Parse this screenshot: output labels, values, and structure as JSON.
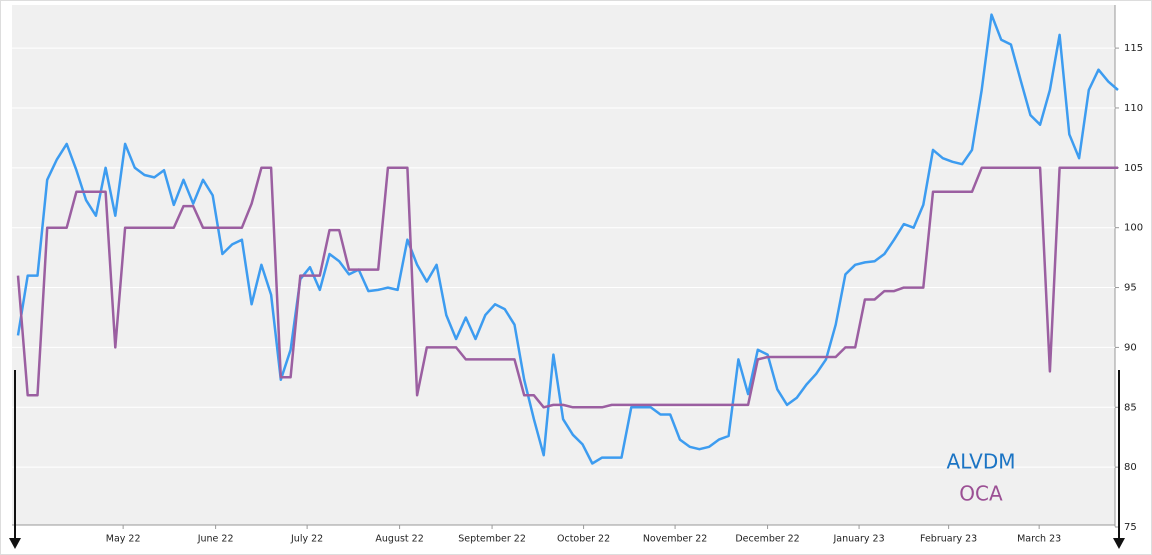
{
  "chart_data": {
    "type": "line",
    "ylim": [
      75,
      118.6
    ],
    "yticks": [
      75,
      80,
      85,
      90,
      95,
      100,
      105,
      110,
      115
    ],
    "xlim": [
      0,
      113
    ],
    "xticks": [
      {
        "value": 10.8,
        "label": "May 22"
      },
      {
        "value": 20.3,
        "label": "June 22"
      },
      {
        "value": 29.7,
        "label": "July 22"
      },
      {
        "value": 39.2,
        "label": "August 22"
      },
      {
        "value": 48.7,
        "label": "September 22"
      },
      {
        "value": 58.1,
        "label": "October 22"
      },
      {
        "value": 67.5,
        "label": "November 22"
      },
      {
        "value": 77,
        "label": "December 22"
      },
      {
        "value": 86.4,
        "label": "January 23"
      },
      {
        "value": 95.6,
        "label": "February 23"
      },
      {
        "value": 104.9,
        "label": "March 23"
      }
    ],
    "grid": true,
    "legend": "lower right",
    "series": [
      {
        "name": "ALVDM",
        "color": "#3d9cf0",
        "label_color": "#1b74c4",
        "values": [
          91,
          96,
          96,
          104,
          105.7,
          107,
          104.8,
          102.3,
          101,
          105,
          101,
          107,
          105,
          104.4,
          104.2,
          104.8,
          101.9,
          104,
          102,
          104,
          102.7,
          97.8,
          98.6,
          99,
          93.6,
          96.9,
          94.4,
          87.3,
          89.8,
          95.7,
          96.7,
          94.8,
          97.8,
          97.2,
          96.1,
          96.5,
          94.7,
          94.8,
          95,
          94.8,
          99,
          96.9,
          95.5,
          96.9,
          92.7,
          90.7,
          92.5,
          90.7,
          92.7,
          93.6,
          93.2,
          91.9,
          87.3,
          84,
          81,
          89.4,
          84,
          82.7,
          81.9,
          80.3,
          80.8,
          80.8,
          80.8,
          85,
          85,
          85,
          84.4,
          84.4,
          82.3,
          81.7,
          81.5,
          81.7,
          82.3,
          82.6,
          89,
          86.1,
          89.8,
          89.4,
          86.5,
          85.2,
          85.8,
          86.9,
          87.8,
          89,
          91.9,
          96.1,
          96.9,
          97.1,
          97.2,
          97.8,
          99,
          100.3,
          100,
          101.9,
          106.5,
          105.8,
          105.5,
          105.3,
          106.5,
          111.5,
          117.8,
          115.7,
          115.3,
          112.3,
          109.4,
          108.6,
          111.5,
          116.1,
          107.8,
          105.8,
          111.5,
          113.2,
          112.2,
          111.5
        ]
      },
      {
        "name": "OCA",
        "color": "#9b5fa1",
        "label_color": "#9b4f94",
        "values": [
          96,
          86,
          86,
          100,
          100,
          100,
          103,
          103,
          103,
          103,
          90,
          100,
          100,
          100,
          100,
          100,
          100,
          101.8,
          101.8,
          100,
          100,
          100,
          100,
          100,
          102,
          105,
          105,
          87.5,
          87.5,
          96,
          96,
          96,
          99.8,
          99.8,
          96.5,
          96.5,
          96.5,
          96.5,
          105,
          105,
          105,
          86,
          90,
          90,
          90,
          90,
          89,
          89,
          89,
          89,
          89,
          89,
          86,
          86,
          85,
          85.2,
          85.2,
          85,
          85,
          85,
          85,
          85.2,
          85.2,
          85.2,
          85.2,
          85.2,
          85.2,
          85.2,
          85.2,
          85.2,
          85.2,
          85.2,
          85.2,
          85.2,
          85.2,
          85.2,
          89,
          89.2,
          89.2,
          89.2,
          89.2,
          89.2,
          89.2,
          89.2,
          89.2,
          90,
          90,
          94,
          94,
          94.7,
          94.7,
          95,
          95,
          95,
          103,
          103,
          103,
          103,
          103,
          105,
          105,
          105,
          105,
          105,
          105,
          105,
          88,
          105,
          105,
          105,
          105,
          105,
          105,
          105
        ]
      }
    ]
  }
}
